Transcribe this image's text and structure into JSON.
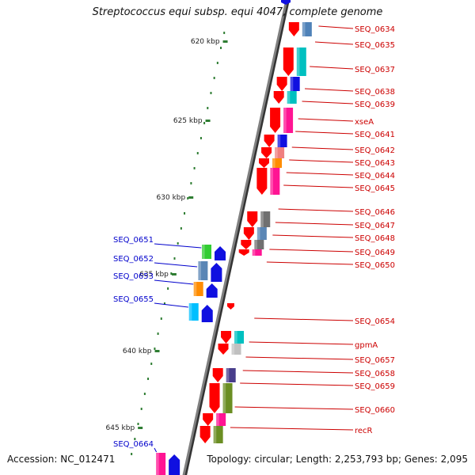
{
  "header": {
    "title": "Streptococcus equi subsp. equi 4047, complete genome"
  },
  "footer": {
    "accession": "Accession: NC_012471",
    "topology": "Topology: circular; Length: 2,253,793 bp; Genes: 2,095"
  },
  "scale_ticks": [
    "620 kbp",
    "625 kbp",
    "630 kbp",
    "635 kbp",
    "640 kbp",
    "645 kbp"
  ],
  "colors": {
    "forward_label": "#cc0000",
    "reverse_label": "#0000cc",
    "backbone": "#808080",
    "tick": "#2e7d32"
  },
  "genes_right": [
    "SEQ_0634",
    "SEQ_0635",
    "SEQ_0637",
    "SEQ_0638",
    "SEQ_0639",
    "xseA",
    "SEQ_0641",
    "SEQ_0642",
    "SEQ_0643",
    "SEQ_0644",
    "SEQ_0645",
    "SEQ_0646",
    "SEQ_0647",
    "SEQ_0648",
    "SEQ_0649",
    "SEQ_0650",
    "SEQ_0654",
    "gpmA",
    "SEQ_0657",
    "SEQ_0658",
    "SEQ_0659",
    "SEQ_0660",
    "recR"
  ],
  "genes_left": [
    "SEQ_0651",
    "SEQ_0652",
    "SEQ_0653",
    "SEQ_0655",
    "SEQ_0664"
  ]
}
